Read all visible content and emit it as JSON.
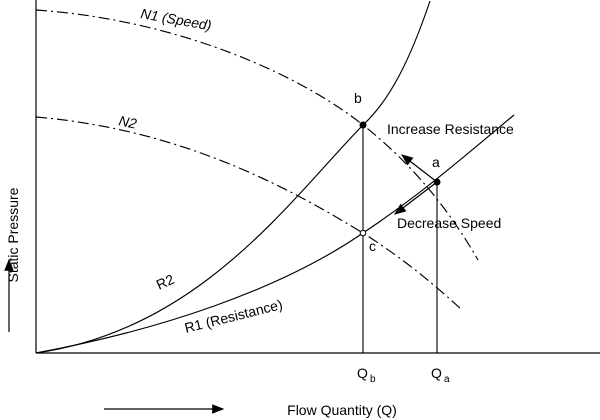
{
  "diagram": {
    "axes": {
      "x_label": "Flow Quantity (Q)",
      "y_label": "Static Pressure"
    },
    "curves": {
      "n1": "N1 (Speed)",
      "n2": "N2",
      "r1": "R1 (Resistance)",
      "r2": "R2"
    },
    "points": {
      "a": "a",
      "b": "b",
      "c": "c"
    },
    "annotations": {
      "increase_resistance": "Increase Resistance",
      "decrease_speed": "Decrease Speed"
    },
    "flow_marks": {
      "qb_main": "Q",
      "qb_sub": "b",
      "qa_main": "Q",
      "qa_sub": "a"
    }
  }
}
